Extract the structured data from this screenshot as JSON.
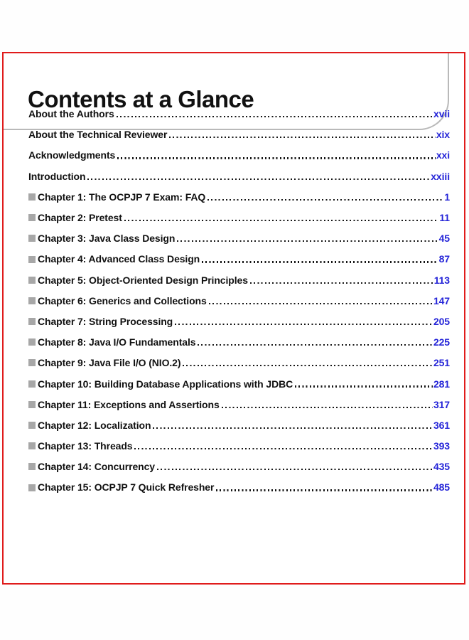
{
  "header": {
    "title": "Contents at a Glance"
  },
  "toc": {
    "front_matter": [
      {
        "label": "About the Authors",
        "page": "xvii"
      },
      {
        "label": "About the Technical Reviewer",
        "page": "xix"
      },
      {
        "label": "Acknowledgments",
        "page": "xxi"
      },
      {
        "label": "Introduction",
        "page": "xxiii"
      }
    ],
    "chapters": [
      {
        "label": "Chapter 1: The OCPJP 7 Exam: FAQ",
        "page": "1"
      },
      {
        "label": "Chapter 2: Pretest",
        "page": "11"
      },
      {
        "label": "Chapter 3: Java Class Design",
        "page": "45"
      },
      {
        "label": "Chapter 4: Advanced Class Design",
        "page": "87"
      },
      {
        "label": "Chapter 5: Object-Oriented Design Principles",
        "page": "113"
      },
      {
        "label": "Chapter 6: Generics and Collections",
        "page": "147"
      },
      {
        "label": "Chapter 7: String Processing",
        "page": "205"
      },
      {
        "label": "Chapter 8: Java I/O Fundamentals",
        "page": "225"
      },
      {
        "label": "Chapter 9: Java File I/O (NIO.2)",
        "page": "251"
      },
      {
        "label": "Chapter 10: Building Database Applications with JDBC",
        "page": "281"
      },
      {
        "label": "Chapter 11: Exceptions and Assertions",
        "page": "317"
      },
      {
        "label": "Chapter 12: Localization",
        "page": "361"
      },
      {
        "label": "Chapter 13: Threads",
        "page": "393"
      },
      {
        "label": "Chapter 14: Concurrency",
        "page": "435"
      },
      {
        "label": "Chapter 15: OCPJP 7 Quick Refresher",
        "page": "485"
      }
    ]
  },
  "colors": {
    "accent_red": "#e01b1b",
    "page_number_blue": "#2424d8",
    "bullet_gray": "#a7a7a7",
    "rule_gray": "#b9b9b9",
    "leader_dot": "#161616"
  }
}
